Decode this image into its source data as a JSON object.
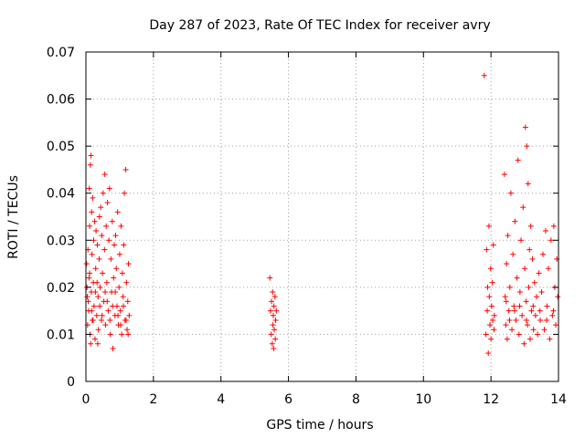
{
  "chart_data": {
    "type": "scatter",
    "title": "Day 287 of 2023, Rate Of TEC Index for receiver avry",
    "xlabel": "GPS time / hours",
    "ylabel": "ROTI / TECUs",
    "xlim": [
      0,
      14
    ],
    "ylim": [
      0,
      0.07
    ],
    "xticks": [
      0,
      2,
      4,
      6,
      8,
      10,
      12,
      14
    ],
    "xtick_labels": [
      "0",
      "2",
      "4",
      "6",
      "8",
      "10",
      "12",
      "14"
    ],
    "yticks": [
      0,
      0.01,
      0.02,
      0.03,
      0.04,
      0.05,
      0.06,
      0.07
    ],
    "ytick_labels": [
      "0",
      "0.01",
      "0.02",
      "0.03",
      "0.04",
      "0.05",
      "0.06",
      "0.07"
    ],
    "grid": true,
    "marker": "+",
    "marker_color": "#ff0000",
    "series": [
      {
        "points": [
          [
            0.02,
            0.025
          ],
          [
            0.04,
            0.018
          ],
          [
            0.05,
            0.012
          ],
          [
            0.06,
            0.028
          ],
          [
            0.08,
            0.015
          ],
          [
            0.09,
            0.022
          ],
          [
            0.1,
            0.041
          ],
          [
            0.11,
            0.033
          ],
          [
            0.12,
            0.01
          ],
          [
            0.13,
            0.046
          ],
          [
            0.14,
            0.008
          ],
          [
            0.15,
            0.048
          ],
          [
            0.16,
            0.019
          ],
          [
            0.17,
            0.036
          ],
          [
            0.18,
            0.027
          ],
          [
            0.19,
            0.013
          ],
          [
            0.2,
            0.039
          ],
          [
            0.22,
            0.021
          ],
          [
            0.23,
            0.03
          ],
          [
            0.24,
            0.016
          ],
          [
            0.26,
            0.034
          ],
          [
            0.27,
            0.009
          ],
          [
            0.29,
            0.024
          ],
          [
            0.3,
            0.032
          ],
          [
            0.32,
            0.014
          ],
          [
            0.34,
            0.029
          ],
          [
            0.36,
            0.018
          ],
          [
            0.37,
            0.011
          ],
          [
            0.39,
            0.026
          ],
          [
            0.4,
            0.035
          ],
          [
            0.42,
            0.02
          ],
          [
            0.44,
            0.037
          ],
          [
            0.46,
            0.013
          ],
          [
            0.47,
            0.031
          ],
          [
            0.49,
            0.023
          ],
          [
            0.51,
            0.04
          ],
          [
            0.53,
            0.017
          ],
          [
            0.55,
            0.028
          ],
          [
            0.56,
            0.044
          ],
          [
            0.58,
            0.012
          ],
          [
            0.6,
            0.033
          ],
          [
            0.62,
            0.021
          ],
          [
            0.64,
            0.038
          ],
          [
            0.66,
            0.015
          ],
          [
            0.68,
            0.03
          ],
          [
            0.7,
            0.041
          ],
          [
            0.72,
            0.01
          ],
          [
            0.74,
            0.026
          ],
          [
            0.76,
            0.019
          ],
          [
            0.78,
            0.034
          ],
          [
            0.8,
            0.007
          ],
          [
            0.82,
            0.022
          ],
          [
            0.84,
            0.029
          ],
          [
            0.86,
            0.014
          ],
          [
            0.88,
            0.031
          ],
          [
            0.9,
            0.024
          ],
          [
            0.92,
            0.016
          ],
          [
            0.94,
            0.036
          ],
          [
            0.96,
            0.012
          ],
          [
            0.98,
            0.02
          ],
          [
            1.0,
            0.027
          ],
          [
            1.02,
            0.015
          ],
          [
            1.04,
            0.033
          ],
          [
            1.06,
            0.01
          ],
          [
            1.08,
            0.023
          ],
          [
            1.1,
            0.018
          ],
          [
            1.12,
            0.029
          ],
          [
            1.14,
            0.04
          ],
          [
            1.16,
            0.013
          ],
          [
            1.18,
            0.045
          ],
          [
            1.2,
            0.021
          ],
          [
            1.22,
            0.011
          ],
          [
            1.24,
            0.017
          ],
          [
            1.26,
            0.025
          ],
          [
            1.28,
            0.014
          ],
          [
            0.03,
            0.02
          ],
          [
            0.07,
            0.017
          ],
          [
            0.11,
            0.023
          ],
          [
            0.17,
            0.015
          ],
          [
            0.21,
            0.013
          ],
          [
            0.28,
            0.019
          ],
          [
            0.33,
            0.021
          ],
          [
            0.41,
            0.016
          ],
          [
            0.48,
            0.014
          ],
          [
            0.57,
            0.019
          ],
          [
            0.63,
            0.017
          ],
          [
            0.71,
            0.013
          ],
          [
            0.79,
            0.016
          ],
          [
            0.87,
            0.019
          ],
          [
            0.95,
            0.014
          ],
          [
            1.03,
            0.012
          ],
          [
            1.11,
            0.016
          ],
          [
            1.19,
            0.013
          ],
          [
            1.25,
            0.01
          ],
          [
            0.35,
            0.008
          ],
          [
            5.45,
            0.022
          ],
          [
            5.47,
            0.015
          ],
          [
            5.49,
            0.01
          ],
          [
            5.5,
            0.017
          ],
          [
            5.52,
            0.008
          ],
          [
            5.53,
            0.019
          ],
          [
            5.54,
            0.012
          ],
          [
            5.55,
            0.014
          ],
          [
            5.56,
            0.007
          ],
          [
            5.57,
            0.016
          ],
          [
            5.58,
            0.011
          ],
          [
            5.6,
            0.018
          ],
          [
            5.61,
            0.009
          ],
          [
            5.62,
            0.013
          ],
          [
            5.64,
            0.015
          ],
          [
            11.8,
            0.065
          ],
          [
            11.85,
            0.01
          ],
          [
            11.87,
            0.028
          ],
          [
            11.89,
            0.015
          ],
          [
            11.9,
            0.02
          ],
          [
            11.92,
            0.006
          ],
          [
            11.94,
            0.033
          ],
          [
            11.95,
            0.018
          ],
          [
            11.97,
            0.012
          ],
          [
            11.99,
            0.024
          ],
          [
            12.0,
            0.009
          ],
          [
            12.02,
            0.016
          ],
          [
            12.04,
            0.021
          ],
          [
            12.05,
            0.013
          ],
          [
            12.07,
            0.029
          ],
          [
            12.09,
            0.011
          ],
          [
            12.4,
            0.044
          ],
          [
            12.42,
            0.018
          ],
          [
            12.44,
            0.012
          ],
          [
            12.46,
            0.025
          ],
          [
            12.48,
            0.009
          ],
          [
            12.5,
            0.031
          ],
          [
            12.53,
            0.015
          ],
          [
            12.56,
            0.02
          ],
          [
            12.59,
            0.04
          ],
          [
            12.62,
            0.011
          ],
          [
            12.65,
            0.027
          ],
          [
            12.68,
            0.016
          ],
          [
            12.71,
            0.034
          ],
          [
            12.74,
            0.013
          ],
          [
            12.77,
            0.022
          ],
          [
            12.8,
            0.047
          ],
          [
            12.83,
            0.01
          ],
          [
            12.86,
            0.019
          ],
          [
            12.89,
            0.03
          ],
          [
            12.92,
            0.014
          ],
          [
            12.95,
            0.037
          ],
          [
            12.98,
            0.008
          ],
          [
            13.0,
            0.024
          ],
          [
            13.02,
            0.054
          ],
          [
            13.04,
            0.017
          ],
          [
            13.06,
            0.05
          ],
          [
            13.08,
            0.012
          ],
          [
            13.1,
            0.042
          ],
          [
            13.12,
            0.02
          ],
          [
            13.14,
            0.028
          ],
          [
            13.16,
            0.009
          ],
          [
            13.18,
            0.033
          ],
          [
            13.2,
            0.015
          ],
          [
            13.23,
            0.026
          ],
          [
            13.26,
            0.011
          ],
          [
            13.29,
            0.021
          ],
          [
            13.32,
            0.014
          ],
          [
            13.35,
            0.018
          ],
          [
            13.38,
            0.01
          ],
          [
            13.42,
            0.023
          ],
          [
            13.46,
            0.013
          ],
          [
            13.5,
            0.019
          ],
          [
            13.54,
            0.027
          ],
          [
            13.58,
            0.011
          ],
          [
            13.62,
            0.032
          ],
          [
            13.66,
            0.016
          ],
          [
            13.7,
            0.024
          ],
          [
            13.74,
            0.009
          ],
          [
            13.78,
            0.03
          ],
          [
            13.82,
            0.014
          ],
          [
            13.86,
            0.033
          ],
          [
            13.89,
            0.02
          ],
          [
            13.92,
            0.012
          ],
          [
            13.95,
            0.026
          ],
          [
            13.98,
            0.018
          ],
          [
            12.1,
            0.014
          ],
          [
            12.45,
            0.017
          ],
          [
            12.55,
            0.013
          ],
          [
            12.7,
            0.015
          ],
          [
            12.85,
            0.016
          ],
          [
            13.05,
            0.013
          ],
          [
            13.25,
            0.016
          ],
          [
            13.45,
            0.015
          ],
          [
            13.65,
            0.013
          ],
          [
            13.85,
            0.015
          ]
        ]
      }
    ]
  }
}
